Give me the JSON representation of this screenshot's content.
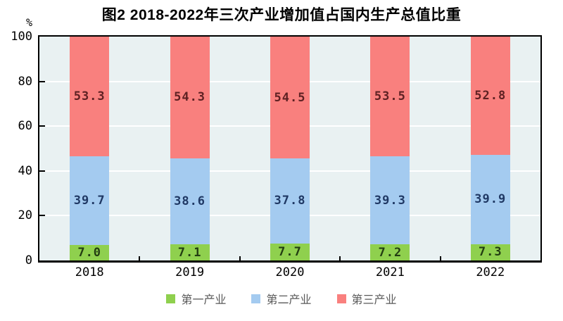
{
  "chart_data": {
    "type": "bar",
    "stacked": true,
    "title": "图2 2018-2022年三次产业增加值占国内生产总值比重",
    "unit_label": "%",
    "categories": [
      "2018",
      "2019",
      "2020",
      "2021",
      "2022"
    ],
    "series": [
      {
        "name": "第一产业",
        "color": "#8FD04E",
        "label_color": "#233E12",
        "values": [
          7.0,
          7.1,
          7.7,
          7.2,
          7.3
        ]
      },
      {
        "name": "第二产业",
        "color": "#A4CBF0",
        "label_color": "#1F3864",
        "values": [
          39.7,
          38.6,
          37.8,
          39.3,
          39.9
        ]
      },
      {
        "name": "第三产业",
        "color": "#F9807E",
        "label_color": "#5E2123",
        "values": [
          53.3,
          54.3,
          54.5,
          53.5,
          52.8
        ]
      }
    ],
    "ylim": [
      0,
      100
    ],
    "yticks": [
      0,
      20,
      40,
      60,
      80,
      100
    ],
    "grid": true,
    "legend_position": "bottom"
  },
  "style": {
    "plot_bg": "#E9F1F2",
    "grid_color": "#FFFFFF",
    "axis_color": "#000000",
    "legend_text_color": "#595959"
  }
}
